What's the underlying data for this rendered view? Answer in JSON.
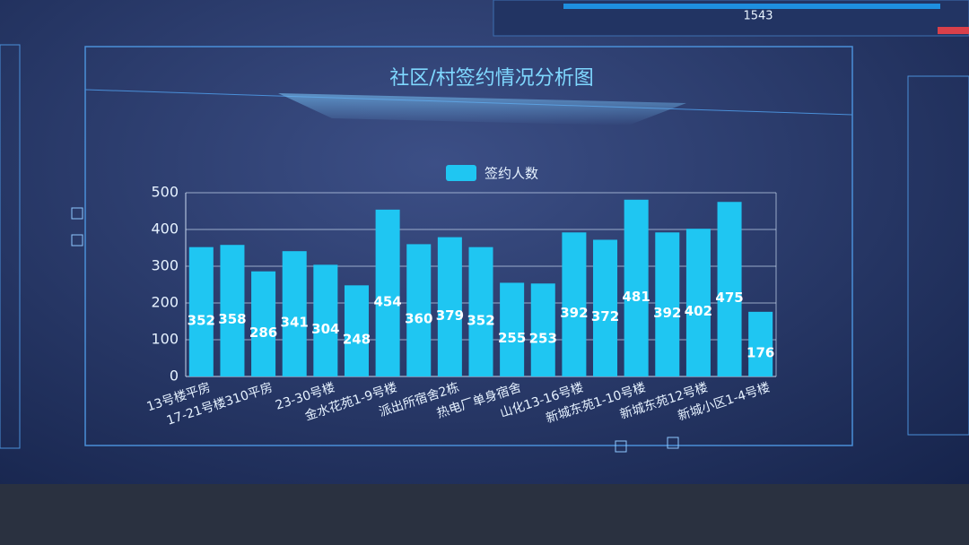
{
  "top_progress": {
    "value": 1543
  },
  "chart_data": {
    "type": "bar",
    "title": "社区/村签约情况分析图",
    "categories": [
      "13号楼平房",
      null,
      "17-21号楼310平房",
      null,
      "23-30号楼",
      null,
      "金水花苑1-9号楼",
      null,
      "派出所宿舍2栋",
      null,
      "热电厂单身宿舍",
      null,
      "山化13-16号楼",
      null,
      "新城东苑1-10号楼",
      null,
      "新城东苑12号楼",
      null,
      "新城小区1-4号楼"
    ],
    "series": [
      {
        "name": "签约人数",
        "color": "#1fc6f2",
        "values": [
          352,
          358,
          286,
          341,
          304,
          248,
          454,
          360,
          379,
          352,
          255,
          253,
          392,
          372,
          481,
          392,
          402,
          475,
          176
        ]
      }
    ],
    "ylim": [
      0,
      500
    ],
    "yticks": [
      0,
      100,
      200,
      300,
      400,
      500
    ],
    "grid": true,
    "legend": "top"
  }
}
